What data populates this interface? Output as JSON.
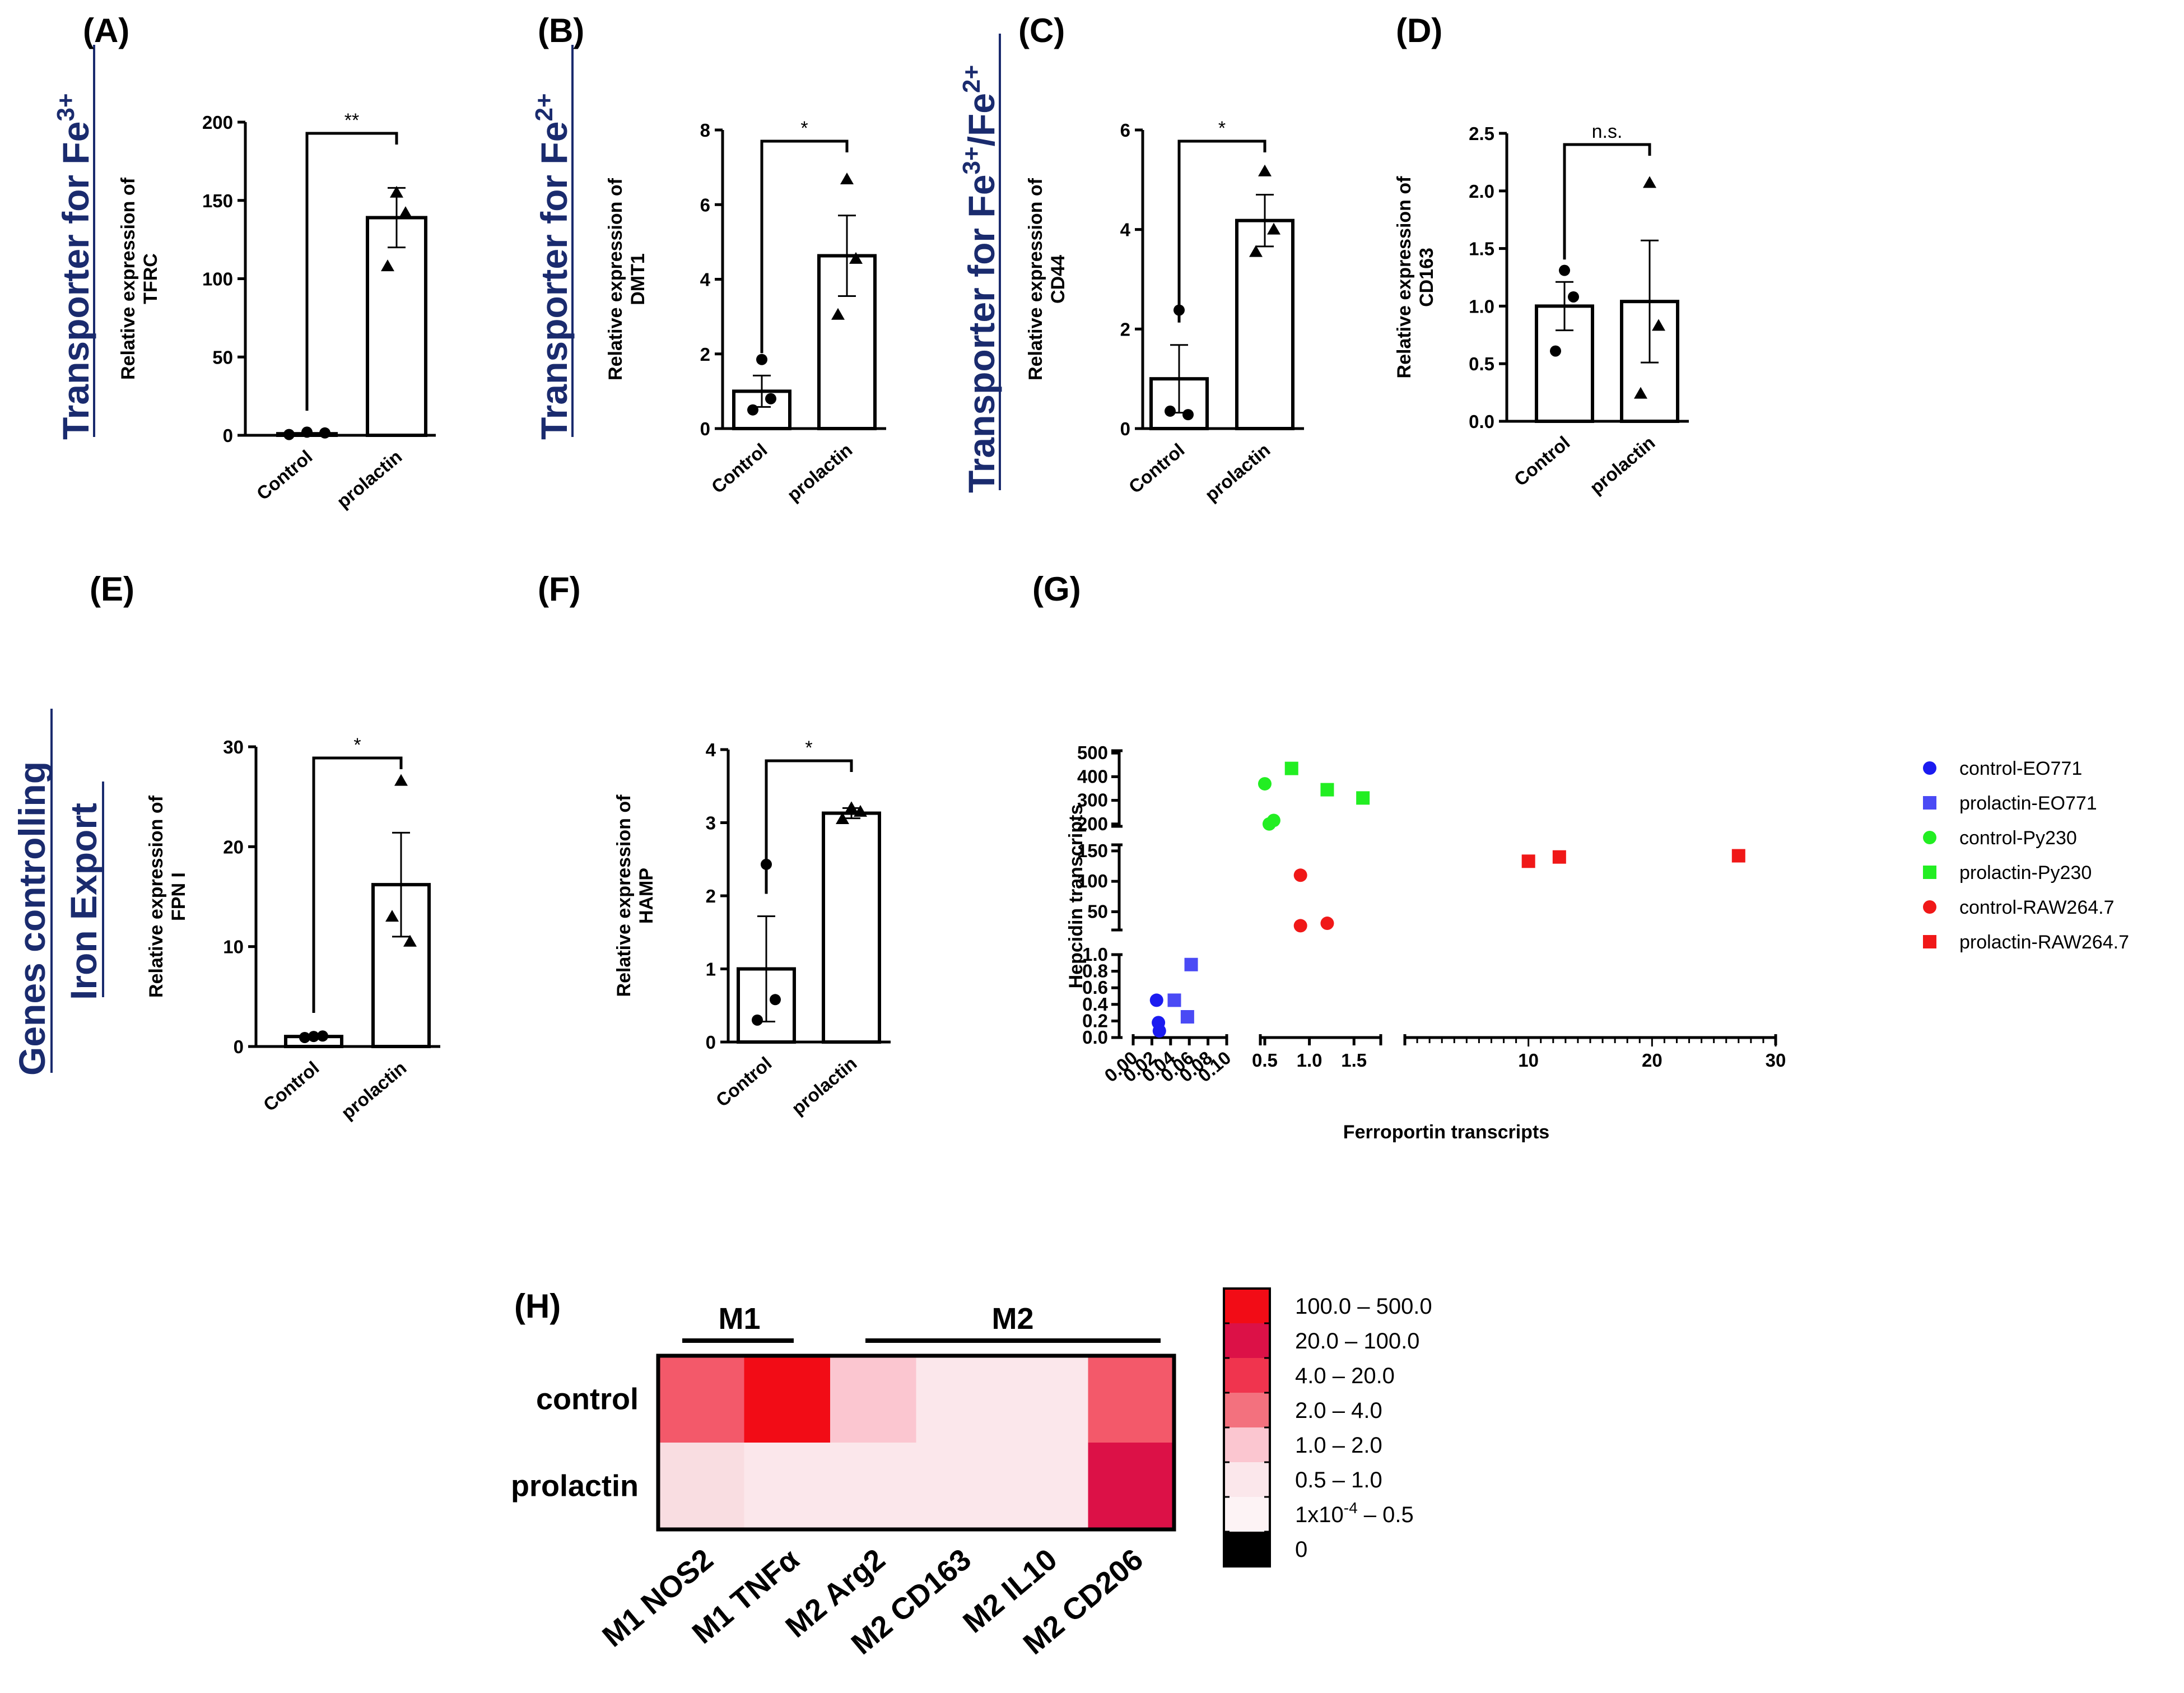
{
  "panels": {
    "A": {
      "label": "(A)",
      "side": "Transporter for Fe",
      "side_sup": "3+",
      "ylabel1": "Relative expression of",
      "ylabel2": "TFRC",
      "sig": "**"
    },
    "B": {
      "label": "(B)",
      "side": "Transporter for Fe",
      "side_sup": "2+",
      "ylabel1": "Relative expression of",
      "ylabel2": "DMT1",
      "sig": "*"
    },
    "C": {
      "label": "(C)",
      "side": "Transporter for Fe",
      "side_sup": "3+",
      "side2": "/Fe",
      "side_sup2": "2+",
      "ylabel1": "Relative expression of",
      "ylabel2": "CD44",
      "sig": "*"
    },
    "D": {
      "label": "(D)",
      "ylabel1": "Relative expression of",
      "ylabel2": "CD163",
      "sig": "n.s."
    },
    "E": {
      "label": "(E)",
      "side_line1": "Genes controlling",
      "side_line2": "Iron Export",
      "ylabel1": "Relative expression of",
      "ylabel2": "FPN I",
      "sig": "*"
    },
    "F": {
      "label": "(F)",
      "ylabel1": "Relative expression of",
      "ylabel2": "HAMP",
      "sig": "*"
    },
    "G": {
      "label": "(G)",
      "xlabel": "Ferroportin transcripts",
      "ylabel": "Hepcidin transcripts"
    },
    "H": {
      "label": "(H)",
      "group_m1": "M1",
      "group_m2": "M2"
    }
  },
  "chart_data": [
    {
      "id": "A",
      "type": "bar",
      "categories": [
        "Control",
        "prolactin"
      ],
      "values": [
        1.0,
        139
      ],
      "sem": [
        0.4,
        19
      ],
      "points": [
        [
          2,
          0.5,
          1.5
        ],
        [
          155,
          108,
          142
        ]
      ],
      "ylim": [
        0,
        200
      ],
      "yticks": [
        "0",
        "50",
        "100",
        "150",
        "200"
      ],
      "ylabel": "Relative expression of TFRC",
      "significance": "**"
    },
    {
      "id": "B",
      "type": "bar",
      "categories": [
        "Control",
        "prolactin"
      ],
      "values": [
        1.0,
        4.63
      ],
      "sem": [
        0.42,
        1.08
      ],
      "points": [
        [
          1.85,
          0.5,
          0.8
        ],
        [
          6.68,
          3.05,
          4.55
        ]
      ],
      "ylim": [
        0,
        8
      ],
      "yticks": [
        "0",
        "2",
        "4",
        "6",
        "8"
      ],
      "ylabel": "Relative expression of DMT1",
      "significance": "*"
    },
    {
      "id": "C",
      "type": "bar",
      "categories": [
        "Control",
        "prolactin"
      ],
      "values": [
        1.0,
        4.18
      ],
      "sem": [
        0.68,
        0.52
      ],
      "points": [
        [
          2.38,
          0.35,
          0.28
        ],
        [
          5.17,
          3.55,
          4.0
        ]
      ],
      "ylim": [
        0,
        6
      ],
      "yticks": [
        "0",
        "2",
        "4",
        "6"
      ],
      "ylabel": "Relative expression of CD44",
      "significance": "*"
    },
    {
      "id": "D",
      "type": "bar",
      "categories": [
        "Control",
        "prolactin"
      ],
      "values": [
        1.0,
        1.04
      ],
      "sem": [
        0.21,
        0.53
      ],
      "points": [
        [
          1.31,
          0.61,
          1.08
        ],
        [
          2.07,
          0.24,
          0.83
        ]
      ],
      "ylim": [
        0,
        2.5
      ],
      "yticks": [
        "0.0",
        "0.5",
        "1.0",
        "1.5",
        "2.0",
        "2.5"
      ],
      "ylabel": "Relative expression of CD163",
      "significance": "n.s."
    },
    {
      "id": "E",
      "type": "bar",
      "categories": [
        "Control",
        "prolactin"
      ],
      "values": [
        1.0,
        16.2
      ],
      "sem": [
        0.12,
        5.2
      ],
      "points": [
        [
          1.0,
          0.9,
          1.05
        ],
        [
          26.6,
          13.0,
          10.5
        ]
      ],
      "ylim": [
        0,
        30
      ],
      "yticks": [
        "0",
        "10",
        "20",
        "30"
      ],
      "ylabel": "Relative expression of FPN I",
      "significance": "*"
    },
    {
      "id": "F",
      "type": "bar",
      "categories": [
        "Control",
        "prolactin"
      ],
      "values": [
        1.0,
        3.13
      ],
      "sem": [
        0.72,
        0.07
      ],
      "points": [
        [
          2.43,
          0.3,
          0.58
        ],
        [
          3.2,
          3.05,
          3.15
        ]
      ],
      "ylim": [
        0,
        4
      ],
      "yticks": [
        "0",
        "1",
        "2",
        "3",
        "4"
      ],
      "ylabel": "Relative expression of HAMP",
      "significance": "*"
    },
    {
      "id": "G",
      "type": "scatter",
      "xlabel": "Ferroportin transcripts",
      "ylabel": "Hepcidin transcripts",
      "x_segments": [
        {
          "range": [
            0,
            0.1
          ],
          "ticks": [
            "0.00",
            "0.02",
            "0.04",
            "0.06",
            "0.08",
            "0.10"
          ]
        },
        {
          "range": [
            0.45,
            1.8
          ],
          "ticks": [
            "0.5",
            "1.0",
            "1.5"
          ]
        },
        {
          "range": [
            0,
            30
          ],
          "ticks": [
            "10",
            "20",
            "30"
          ]
        }
      ],
      "y_segments": [
        {
          "range": [
            0,
            1
          ],
          "ticks": [
            "0.0",
            "0.2",
            "0.4",
            "0.6",
            "0.8",
            "1.0"
          ]
        },
        {
          "range": [
            20,
            160
          ],
          "ticks": [
            "50",
            "100",
            "150"
          ]
        },
        {
          "range": [
            190,
            510
          ],
          "ticks": [
            "200",
            "300",
            "400",
            "500"
          ]
        }
      ],
      "series": [
        {
          "name": "control-EO771",
          "color": "#1b1bf0",
          "marker": "circle",
          "points": [
            [
              0.025,
              0.45
            ],
            [
              0.027,
              0.18
            ],
            [
              0.028,
              0.08
            ]
          ]
        },
        {
          "name": "prolactin-EO771",
          "color": "#4a4af5",
          "marker": "square",
          "points": [
            [
              0.044,
              0.45
            ],
            [
              0.058,
              0.25
            ],
            [
              0.062,
              0.88
            ]
          ]
        },
        {
          "name": "control-Py230",
          "color": "#22ee22",
          "marker": "circle",
          "points": [
            [
              0.5,
              370
            ],
            [
              0.55,
              200
            ],
            [
              0.6,
              215
            ]
          ]
        },
        {
          "name": "prolactin-Py230",
          "color": "#22ee22",
          "marker": "square",
          "points": [
            [
              0.8,
              435
            ],
            [
              1.2,
              345
            ],
            [
              1.6,
              310
            ]
          ]
        },
        {
          "name": "control-RAW264.7",
          "color": "#f01818",
          "marker": "circle",
          "points": [
            [
              0.9,
              110
            ],
            [
              0.9,
              27
            ],
            [
              1.2,
              31
            ]
          ]
        },
        {
          "name": "prolactin-RAW264.7",
          "color": "#f01818",
          "marker": "square",
          "points": [
            [
              10,
              133
            ],
            [
              12.5,
              140
            ],
            [
              27,
              142
            ]
          ]
        }
      ],
      "legend": "right"
    },
    {
      "id": "H",
      "type": "heatmap",
      "rows": [
        "control",
        "prolactin"
      ],
      "columns": [
        "M1 NOS2",
        "M1 TNFα",
        "M2 Arg2",
        "M2 CD163",
        "M2 IL10",
        "M2 CD206"
      ],
      "values": [
        [
          3,
          200,
          1.5,
          0.6,
          0.6,
          3
        ],
        [
          0.8,
          0.6,
          0.6,
          0.6,
          0.6,
          50
        ]
      ],
      "cell_colors": [
        [
          "#f3596a",
          "#f20c16",
          "#fbc6d0",
          "#fbe7eb",
          "#fbe7eb",
          "#f3596a"
        ],
        [
          "#f9dde1",
          "#fbe7eb",
          "#fbe7eb",
          "#fbe7eb",
          "#fbe7eb",
          "#dc1147"
        ]
      ],
      "groups": [
        {
          "name": "M1",
          "columns": [
            "M1 NOS2",
            "M1 TNFα"
          ]
        },
        {
          "name": "M2",
          "columns": [
            "M2 Arg2",
            "M2 CD163",
            "M2 IL10",
            "M2 CD206"
          ]
        }
      ],
      "legend_bins": [
        {
          "label": "100.0 – 500.0",
          "color": "#f20c16"
        },
        {
          "label": "20.0 – 100.0",
          "color": "#dc1147"
        },
        {
          "label": "4.0 – 20.0",
          "color": "#f0344e"
        },
        {
          "label": "2.0 – 4.0",
          "color": "#f3717e"
        },
        {
          "label": "1.0 – 2.0",
          "color": "#fbc6d0"
        },
        {
          "label": "0.5 – 1.0",
          "color": "#fbe7eb"
        },
        {
          "label": "1x10",
          "sup": "-4",
          "label_tail": " – 0.5",
          "color": "#fdf3f5"
        },
        {
          "label": "0",
          "color": "#000000"
        }
      ]
    }
  ]
}
